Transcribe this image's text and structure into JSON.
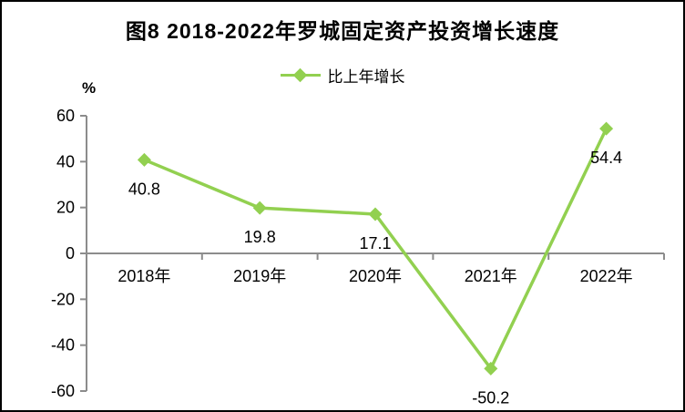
{
  "figure": {
    "title": "图8  2018-2022年罗城固定资产投资增长速度",
    "legend_label": "比上年增长",
    "unit_label": "%"
  },
  "colors": {
    "series_green": "#92D050",
    "axis_gray": "#8C8C8C",
    "text_black": "#000000",
    "background": "#FFFFFF",
    "border": "#000000"
  },
  "chart_data": {
    "type": "line",
    "title": "图8  2018-2022年罗城固定资产投资增长速度",
    "categories": [
      "2018年",
      "2019年",
      "2020年",
      "2021年",
      "2022年"
    ],
    "series": [
      {
        "name": "比上年增长",
        "values": [
          40.8,
          19.8,
          17.1,
          -50.2,
          54.4
        ]
      }
    ],
    "data_labels": [
      "40.8",
      "19.8",
      "17.1",
      "-50.2",
      "54.4"
    ],
    "xlabel": "",
    "ylabel": "%",
    "ylim": [
      -60,
      60
    ],
    "yticks": [
      60,
      40,
      20,
      0,
      -20,
      -40,
      -60
    ],
    "grid": false,
    "legend_position": "top-center",
    "marker": "diamond"
  }
}
